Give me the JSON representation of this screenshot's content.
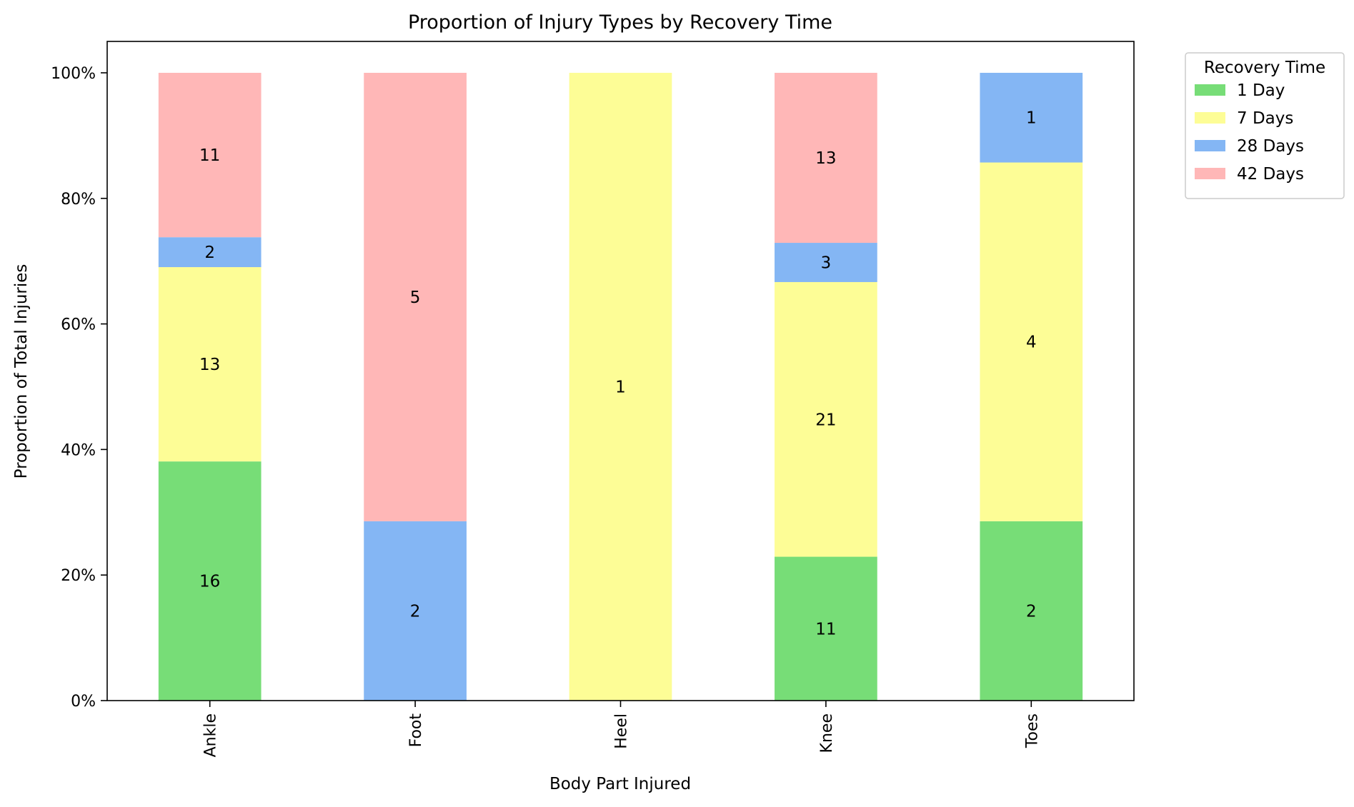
{
  "chart_data": {
    "type": "bar",
    "stacked": true,
    "normalized": true,
    "title": "Proportion of Injury Types by Recovery Time",
    "xlabel": "Body Part Injured",
    "ylabel": "Proportion of Total Injuries",
    "categories": [
      "Ankle",
      "Foot",
      "Heel",
      "Knee",
      "Toes"
    ],
    "ylim": [
      0,
      1.05
    ],
    "yticks": [
      0,
      0.2,
      0.4,
      0.6,
      0.8,
      1.0
    ],
    "ytick_labels": [
      "0%",
      "20%",
      "40%",
      "60%",
      "80%",
      "100%"
    ],
    "grid": false,
    "legend": {
      "title": "Recovery Time",
      "placement": "outside-top-right"
    },
    "series": [
      {
        "name": "1 Day",
        "color": "#77dd77",
        "values": [
          16,
          0,
          0,
          11,
          2
        ]
      },
      {
        "name": "7 Days",
        "color": "#fdfd96",
        "values": [
          13,
          0,
          1,
          21,
          4
        ]
      },
      {
        "name": "28 Days",
        "color": "#84b6f4",
        "values": [
          2,
          2,
          0,
          3,
          1
        ]
      },
      {
        "name": "42 Days",
        "color": "#ffb7b7",
        "values": [
          11,
          5,
          0,
          13,
          0
        ]
      }
    ]
  }
}
